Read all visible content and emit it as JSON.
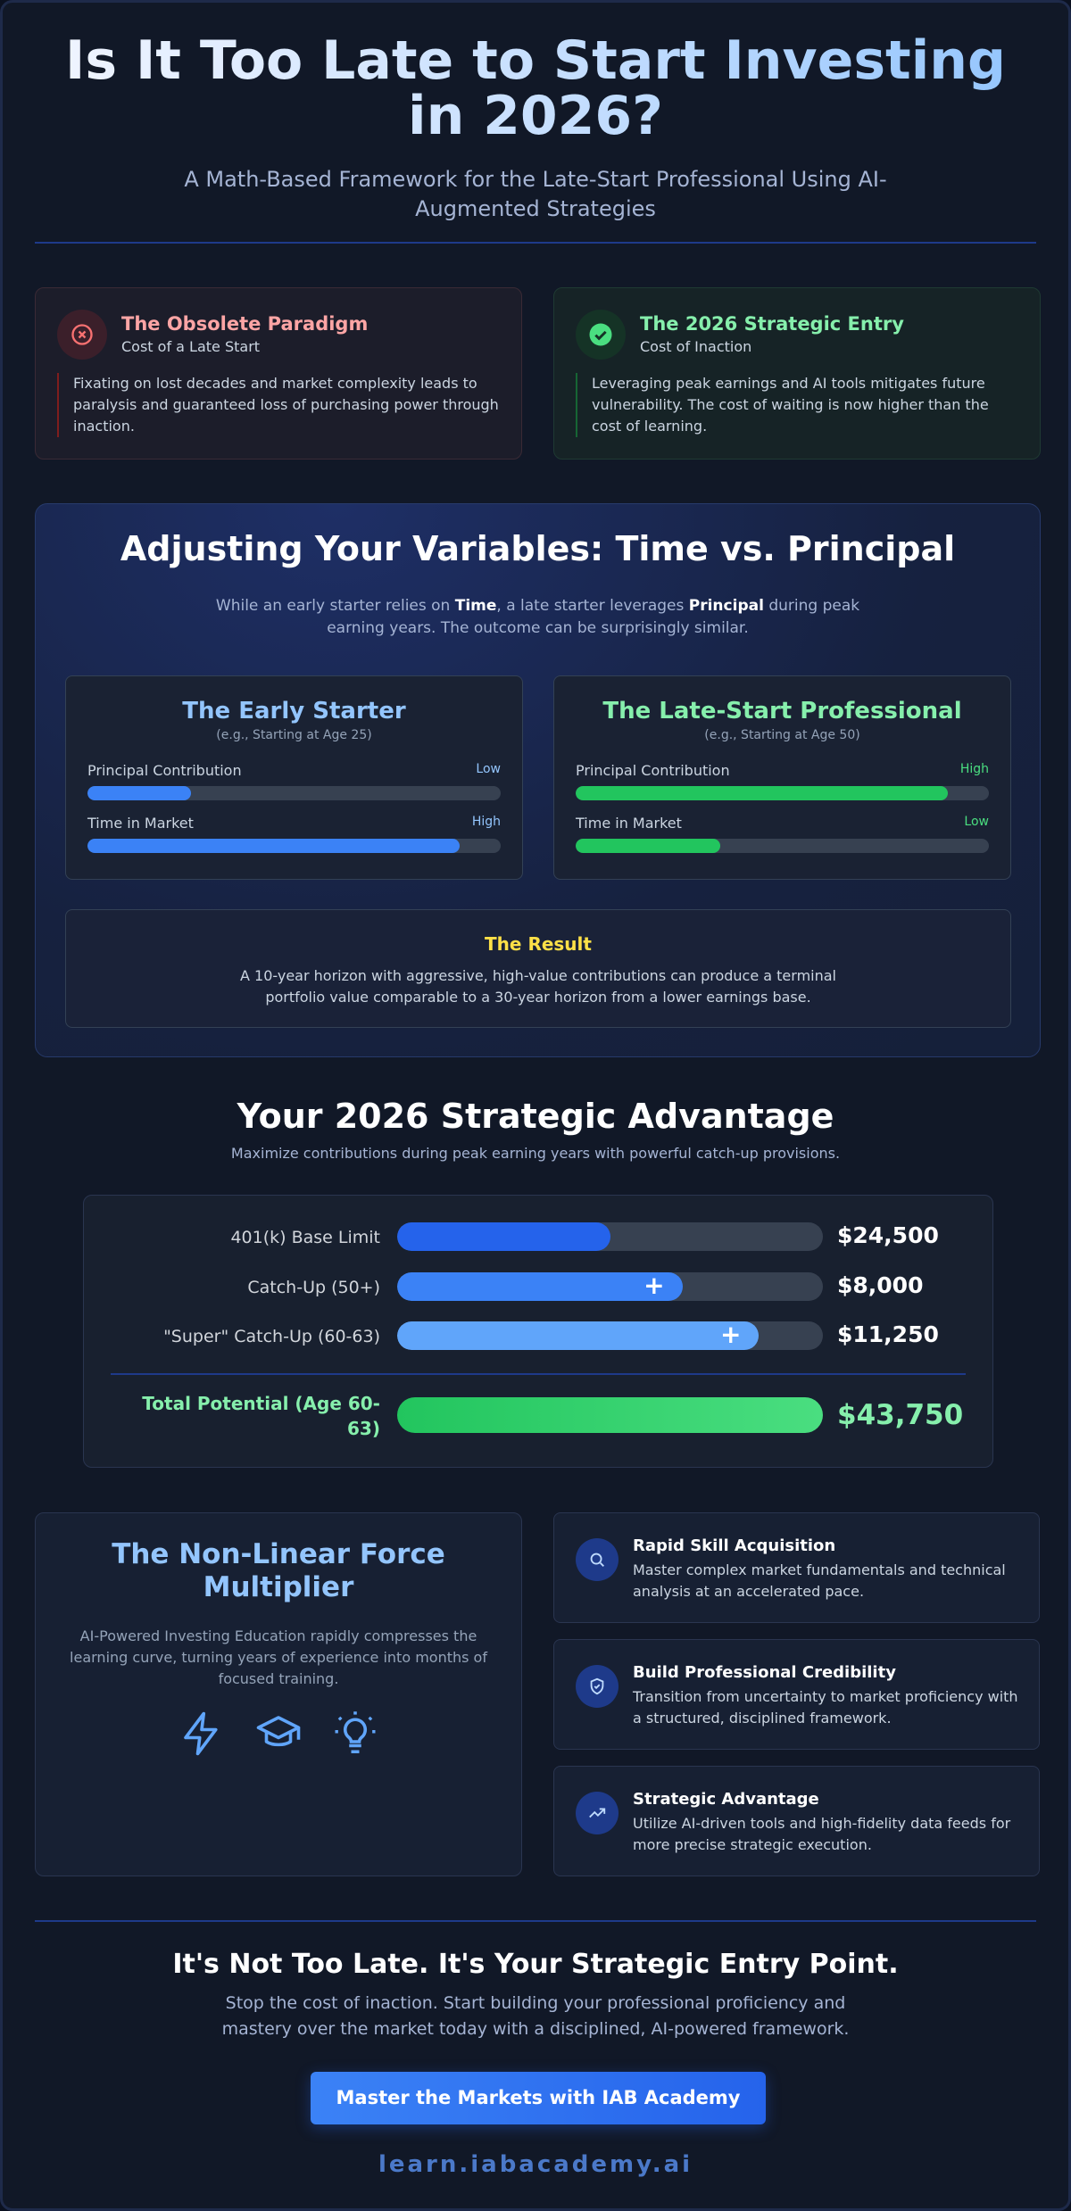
{
  "header": {
    "title": "Is It Too Late to Start Investing in 2026?",
    "subtitle": "A Math-Based Framework for the Late-Start Professional Using AI-Augmented Strategies"
  },
  "cards": [
    {
      "title": "The Obsolete Paradigm",
      "subtitle": "Cost of a Late Start",
      "body": "Fixating on lost decades and market complexity leads to paralysis and guaranteed loss of purchasing power through inaction."
    },
    {
      "title": "The 2026 Strategic Entry",
      "subtitle": "Cost of Inaction",
      "body": "Leveraging peak earnings and AI tools mitigates future vulnerability. The cost of waiting is now higher than the cost of learning."
    }
  ],
  "variables": {
    "title": "Adjusting Your Variables: Time vs. Principal",
    "intro": [
      "While an early starter relies on ",
      "Time",
      ", a late starter leverages ",
      "Principal",
      " during peak earning years. The outcome can be surprisingly similar."
    ],
    "profiles": [
      {
        "title": "The Early Starter",
        "note": "(e.g., Starting at Age 25)",
        "metrics": [
          {
            "label": "Principal Contribution",
            "level": "Low"
          },
          {
            "label": "Time in Market",
            "level": "High"
          }
        ]
      },
      {
        "title": "The Late-Start Professional",
        "note": "(e.g., Starting at Age 50)",
        "metrics": [
          {
            "label": "Principal Contribution",
            "level": "High"
          },
          {
            "label": "Time in Market",
            "level": "Low"
          }
        ]
      }
    ],
    "result": {
      "title": "The Result",
      "body": "A 10-year horizon with aggressive, high-value contributions can produce a terminal portfolio value comparable to a 30-year horizon from a lower earnings base."
    }
  },
  "advantage": {
    "title": "Your 2026 Strategic Advantage",
    "subtitle": "Maximize contributions during peak earning years with powerful catch-up provisions.",
    "rows": [
      {
        "label": "401(k) Base Limit",
        "value": "$24,500"
      },
      {
        "label": "Catch-Up (50+)",
        "value": "$8,000"
      },
      {
        "label": "\"Super\" Catch-Up (60-63)",
        "value": "$11,250"
      }
    ],
    "total": {
      "label": "Total Potential (Age 60-63)",
      "value": "$43,750"
    }
  },
  "multiplier": {
    "title": "The Non-Linear Force Multiplier",
    "body": "AI-Powered Investing Education rapidly compresses the learning curve, turning years of experience into months of focused training."
  },
  "features": [
    {
      "title": "Rapid Skill Acquisition",
      "body": "Master complex market fundamentals and technical analysis at an accelerated pace."
    },
    {
      "title": "Build Professional Credibility",
      "body": "Transition from uncertainty to market proficiency with a structured, disciplined framework."
    },
    {
      "title": "Strategic Advantage",
      "body": "Utilize AI-driven tools and high-fidelity data feeds for more precise strategic execution."
    }
  ],
  "cta": {
    "title": "It's Not Too Late. It's Your Strategic Entry Point.",
    "body": "Stop the cost of inaction. Start building your professional proficiency and mastery over the market today with a disciplined, AI-powered framework.",
    "button": "Master the Markets with IAB Academy",
    "url": "learn.iabacademy.ai"
  }
}
